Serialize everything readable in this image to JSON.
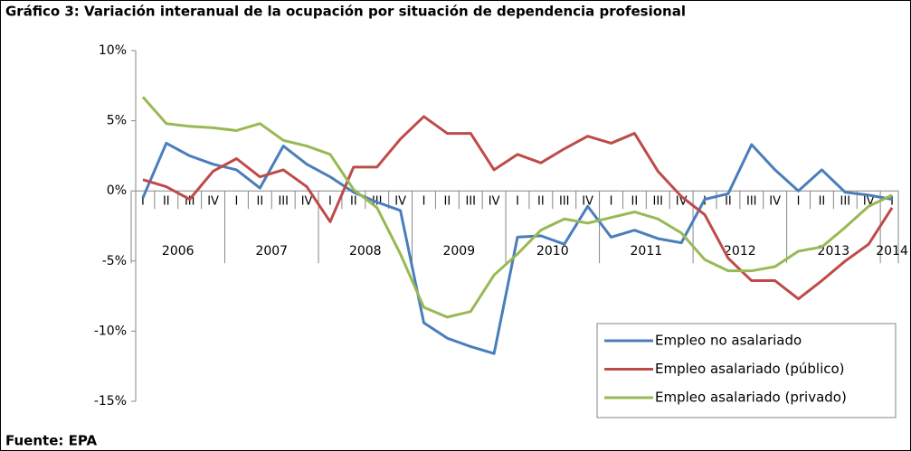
{
  "chart_data": {
    "type": "line",
    "title": "Gráfico 3: Variación interanual de la ocupación por situación de dependencia profesional",
    "source": "Fuente: EPA",
    "categories": [
      "I",
      "II",
      "III",
      "IV",
      "I",
      "II",
      "III",
      "IV",
      "I",
      "II",
      "III",
      "IV",
      "I",
      "II",
      "III",
      "IV",
      "I",
      "II",
      "III",
      "IV",
      "I",
      "II",
      "III",
      "IV",
      "I",
      "II",
      "III",
      "IV",
      "I",
      "II",
      "III",
      "IV",
      "I"
    ],
    "groups": [
      "2006",
      "2007",
      "2008",
      "2009",
      "2010",
      "2011",
      "2012",
      "2013",
      "2014"
    ],
    "ylim": [
      -15,
      10
    ],
    "yticks": [
      {
        "value": -15,
        "label": "-15%"
      },
      {
        "value": -10,
        "label": "-10%"
      },
      {
        "value": -5,
        "label": "-5%"
      },
      {
        "value": 0,
        "label": "0%"
      },
      {
        "value": 5,
        "label": "5%"
      },
      {
        "value": 10,
        "label": "10%"
      }
    ],
    "grid": false,
    "legend": "lower right",
    "series": [
      {
        "name": "Empleo no asalariado",
        "color": "#4a7ebb",
        "values": [
          -0.5,
          3.4,
          2.5,
          1.9,
          1.5,
          0.2,
          3.2,
          1.9,
          1.0,
          -0.1,
          -0.8,
          -1.4,
          -9.4,
          -10.5,
          -11.1,
          -11.6,
          -3.3,
          -3.2,
          -3.8,
          -1.1,
          -3.3,
          -2.8,
          -3.4,
          -3.7,
          -0.6,
          -0.2,
          3.3,
          1.5,
          0,
          1.5,
          -0.1,
          -0.3,
          -0.6
        ]
      },
      {
        "name": "Empleo asalariado (público)",
        "color": "#be4b48",
        "values": [
          0.8,
          0.3,
          -0.6,
          1.4,
          2.3,
          1.0,
          1.5,
          0.3,
          -2.2,
          1.7,
          1.7,
          3.7,
          5.3,
          4.1,
          4.1,
          1.5,
          2.6,
          2.0,
          3.0,
          3.9,
          3.4,
          4.1,
          1.4,
          -0.4,
          -1.7,
          -4.8,
          -6.4,
          -6.4,
          -7.7,
          -6.4,
          -5.0,
          -3.8,
          -1.2
        ]
      },
      {
        "name": "Empleo asalariado (privado)",
        "color": "#98b954",
        "values": [
          6.7,
          4.8,
          4.6,
          4.5,
          4.3,
          4.8,
          3.6,
          3.2,
          2.6,
          0.1,
          -1.2,
          -4.5,
          -8.3,
          -9.0,
          -8.6,
          -6.0,
          -4.5,
          -2.8,
          -2.0,
          -2.3,
          -1.9,
          -1.5,
          -2.0,
          -3.0,
          -4.9,
          -5.7,
          -5.7,
          -5.4,
          -4.3,
          -4.0,
          -2.6,
          -1.1,
          -0.3
        ]
      }
    ]
  }
}
